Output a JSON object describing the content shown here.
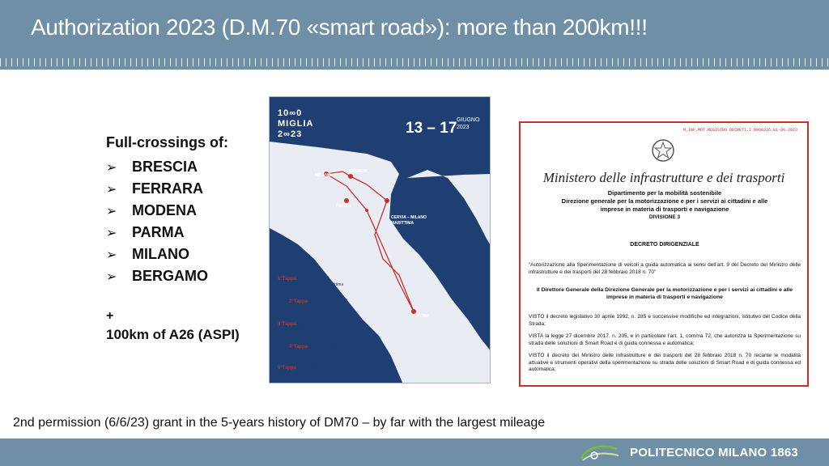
{
  "header": {
    "title": "Authorization 2023 (D.M.70 «smart road»): more than 200km!!!",
    "band_color": "#6f8fa6"
  },
  "crossings": {
    "title": "Full-crossings of:",
    "bullet_icon": "arrow-bullet-icon",
    "cities": [
      "BRESCIA",
      "FERRARA",
      "MODENA",
      "PARMA",
      "MILANO",
      "BERGAMO"
    ],
    "plus": "+",
    "extra": "100km of A26 (ASPI)"
  },
  "poster": {
    "logo_line1": "10∞0",
    "logo_line2": "MIGLIA",
    "logo_line3": "2∞23",
    "dates": "13 – 17",
    "month": "GIUGNO",
    "year": "2023",
    "map_labels": {
      "milano": "MILANO",
      "brescia": "BRESCIA",
      "parma": "PARMA",
      "cervia": "CERVIA – MILANO MARITTIMA",
      "roma": "ROMA"
    },
    "stages": [
      {
        "title": "1°Tappa",
        "day": "/ MARTEDÌ 13",
        "route": "Brescia → Cervia – Milano Marittima"
      },
      {
        "title": "2°Tappa",
        "day": "/ MERCOLEDÌ 14",
        "route": "Cervia – Milano Marittima → Roma"
      },
      {
        "title": "3°Tappa",
        "day": "/ GIOVEDÌ 15",
        "route": "Roma → Parma"
      },
      {
        "title": "4°Tappa",
        "day": "/ VENERDÌ 16",
        "route": "Parma → Milano"
      },
      {
        "title": "5°Tappa",
        "day": "/ SABATO 17",
        "route": "Milano → Brescia"
      }
    ],
    "background_color": "#1f3f72"
  },
  "decree": {
    "code": "M_INF.MOT.REGISTRO DECRETI.I.0000226.01-06-2023",
    "ministry": "Ministero delle infrastrutture e dei trasporti",
    "department": "Dipartimento per la mobilità sostenibile",
    "directorate_line1": "Direzione generale per la motorizzazione e per i servizi ai cittadini e alle",
    "directorate_line2": "imprese in materia di trasporti e navigazione",
    "division": "DIVISIONE 3",
    "decree_type": "DECRETO DIRIGENZIALE",
    "subject": "“Autorizzazione alla Sperimentazione di veicoli a guida automatica ai sensi dell’art. 9 del Decreto del Ministro delle infrastrutture e dei trasporti del 28 febbraio 2018 n. 70”",
    "director": "Il Direttore Generale della Direzione Generale per la motorizzazione e per i servizi ai cittadini e alle imprese in materia di trasporti e navigazione",
    "visto1": "VISTO il decreto legislativo 30 aprile 1992, n. 285 e successive modifiche ed integrazioni, istitutivo del Codice della Strada;",
    "visto2": "VISTA la legge 27 dicembre 2017, n. 205, e in particolare l’art. 1, comma 72, che autorizza la Sperimentazione su strada delle soluzioni di Smart Road e di guida connessa e automatica;",
    "visto3": "VISTO il decreto del Ministro delle infrastrutture e dei trasporti del 28 febbraio 2018 n. 70 recante le modalità attuative e strumenti operativi della sperimentazione su strada delle soluzioni di Smart Road e di guida connessa ed automatica;",
    "border_color": "#c9302c"
  },
  "caption": "2nd permission (6/6/23) grant in the 5-years history of DM70 – by far with the largest mileage",
  "footer": {
    "brand": "POLITECNICO MILANO 1863",
    "logo_icon": "move-logo-icon"
  }
}
